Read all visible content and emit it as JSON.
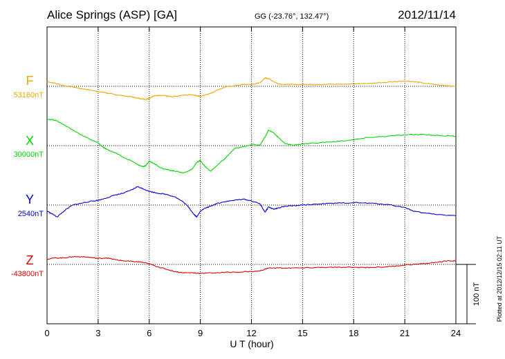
{
  "header": {
    "station": "Alice Springs (ASP)  [GA]",
    "coords": "GG (-23.76°, 132.47°)",
    "date": "2012/11/14"
  },
  "footer": {
    "plotted": "Plotted at 2012/12/15 02:11  UT",
    "scale_label": "100 nT"
  },
  "chart_data": {
    "type": "line",
    "title": "Alice Springs (ASP)  [GA]",
    "xlabel": "U T (hour)",
    "ylabel": "",
    "xlim": [
      0,
      24
    ],
    "xticks": [
      "0",
      "3",
      "6",
      "9",
      "12",
      "15",
      "18",
      "21",
      "24"
    ],
    "scale_bar_nT": 100,
    "grid": true,
    "series": [
      {
        "name": "F",
        "baseline_label": "53160nT",
        "baseline_nT": 53160,
        "color": "#f0a800",
        "x": [
          0,
          0.5,
          1,
          1.5,
          2,
          2.5,
          3,
          3.3,
          3.6,
          4,
          4.5,
          5,
          5.3,
          5.6,
          5.8,
          6,
          6.3,
          6.6,
          7,
          7.3,
          7.6,
          8,
          8.5,
          8.8,
          9,
          9.3,
          9.6,
          10,
          10.5,
          11,
          11.5,
          12,
          12.5,
          12.8,
          13,
          13.3,
          13.6,
          14,
          14.5,
          15,
          16,
          17,
          18,
          19,
          20,
          21,
          21.5,
          22,
          23,
          24
        ],
        "y": [
          8,
          5,
          1,
          -1,
          -4,
          -6,
          -9,
          -10,
          -12,
          -14,
          -16,
          -18,
          -20,
          -21,
          -22,
          -20,
          -16,
          -15,
          -16,
          -18,
          -17,
          -15,
          -14,
          -16,
          -17,
          -14,
          -12,
          -6,
          -1,
          1,
          3,
          3,
          6,
          14,
          13,
          8,
          4,
          3,
          3,
          3,
          3,
          4,
          4,
          5,
          7,
          9,
          8,
          6,
          2,
          0
        ]
      },
      {
        "name": "X",
        "baseline_label": "30000nT",
        "baseline_nT": 30000,
        "color": "#00d800",
        "x": [
          0,
          0.5,
          1,
          1.5,
          2,
          2.5,
          3,
          3.2,
          3.5,
          4,
          4.5,
          5,
          5.3,
          5.6,
          5.8,
          6,
          6.3,
          6.6,
          7,
          7.3,
          7.6,
          8,
          8.5,
          8.8,
          9,
          9.3,
          9.6,
          10,
          10.5,
          11,
          11.5,
          12,
          12.5,
          12.8,
          13,
          13.3,
          13.6,
          14,
          14.5,
          15,
          16,
          17,
          18,
          19,
          20,
          21,
          22,
          23,
          24
        ],
        "y": [
          45,
          43,
          35,
          27,
          18,
          11,
          5,
          -1,
          -6,
          -12,
          -20,
          -26,
          -32,
          -35,
          -34,
          -26,
          -30,
          -36,
          -40,
          -42,
          -43,
          -46,
          -40,
          -28,
          -25,
          -36,
          -43,
          -33,
          -20,
          -5,
          -2,
          2,
          1,
          15,
          26,
          22,
          13,
          3,
          1,
          3,
          5,
          7,
          10,
          14,
          16,
          18,
          19,
          17,
          16
        ]
      },
      {
        "name": "Y",
        "baseline_label": "2540nT",
        "baseline_nT": 2540,
        "color": "#0000d8",
        "x": [
          0,
          0.3,
          0.6,
          1,
          1.5,
          2,
          2.5,
          3,
          3.5,
          4,
          4.5,
          5,
          5.3,
          5.6,
          6,
          6.5,
          7,
          7.5,
          8,
          8.3,
          8.6,
          8.8,
          9,
          9.3,
          9.6,
          10,
          10.5,
          11,
          11.5,
          12,
          12.5,
          12.8,
          13,
          13.3,
          13.6,
          14,
          15,
          16,
          17,
          18,
          19,
          20,
          21,
          21.5,
          22,
          23,
          24
        ],
        "y": [
          -10,
          -15,
          -20,
          -10,
          0,
          3,
          6,
          8,
          12,
          17,
          20,
          26,
          31,
          28,
          23,
          20,
          18,
          14,
          5,
          -3,
          -15,
          -20,
          -10,
          -5,
          -2,
          3,
          6,
          8,
          10,
          7,
          2,
          -12,
          -3,
          -7,
          -5,
          -2,
          0,
          2,
          3,
          4,
          3,
          1,
          -4,
          -10,
          -13,
          -16,
          -18
        ]
      },
      {
        "name": "Z",
        "baseline_label": "-43800nT",
        "baseline_nT": -43800,
        "color": "#e00000",
        "x": [
          0,
          0.5,
          1,
          1.5,
          2,
          2.5,
          3,
          3.5,
          4,
          4.5,
          5,
          5.5,
          6,
          6.5,
          7,
          7.5,
          8,
          8.5,
          9,
          10,
          11,
          12,
          12.5,
          13,
          14,
          15,
          16,
          17,
          18,
          19,
          20,
          21,
          22,
          23,
          23.5,
          24
        ],
        "y": [
          9,
          11,
          11,
          13,
          13,
          12,
          10,
          11,
          8,
          6,
          5,
          4,
          1,
          -4,
          -8,
          -12,
          -14,
          -14,
          -15,
          -14,
          -13,
          -12,
          -11,
          -6,
          -6,
          -6,
          -5,
          -5,
          -5,
          -5,
          -4,
          -1,
          1,
          4,
          6,
          6
        ]
      }
    ]
  }
}
